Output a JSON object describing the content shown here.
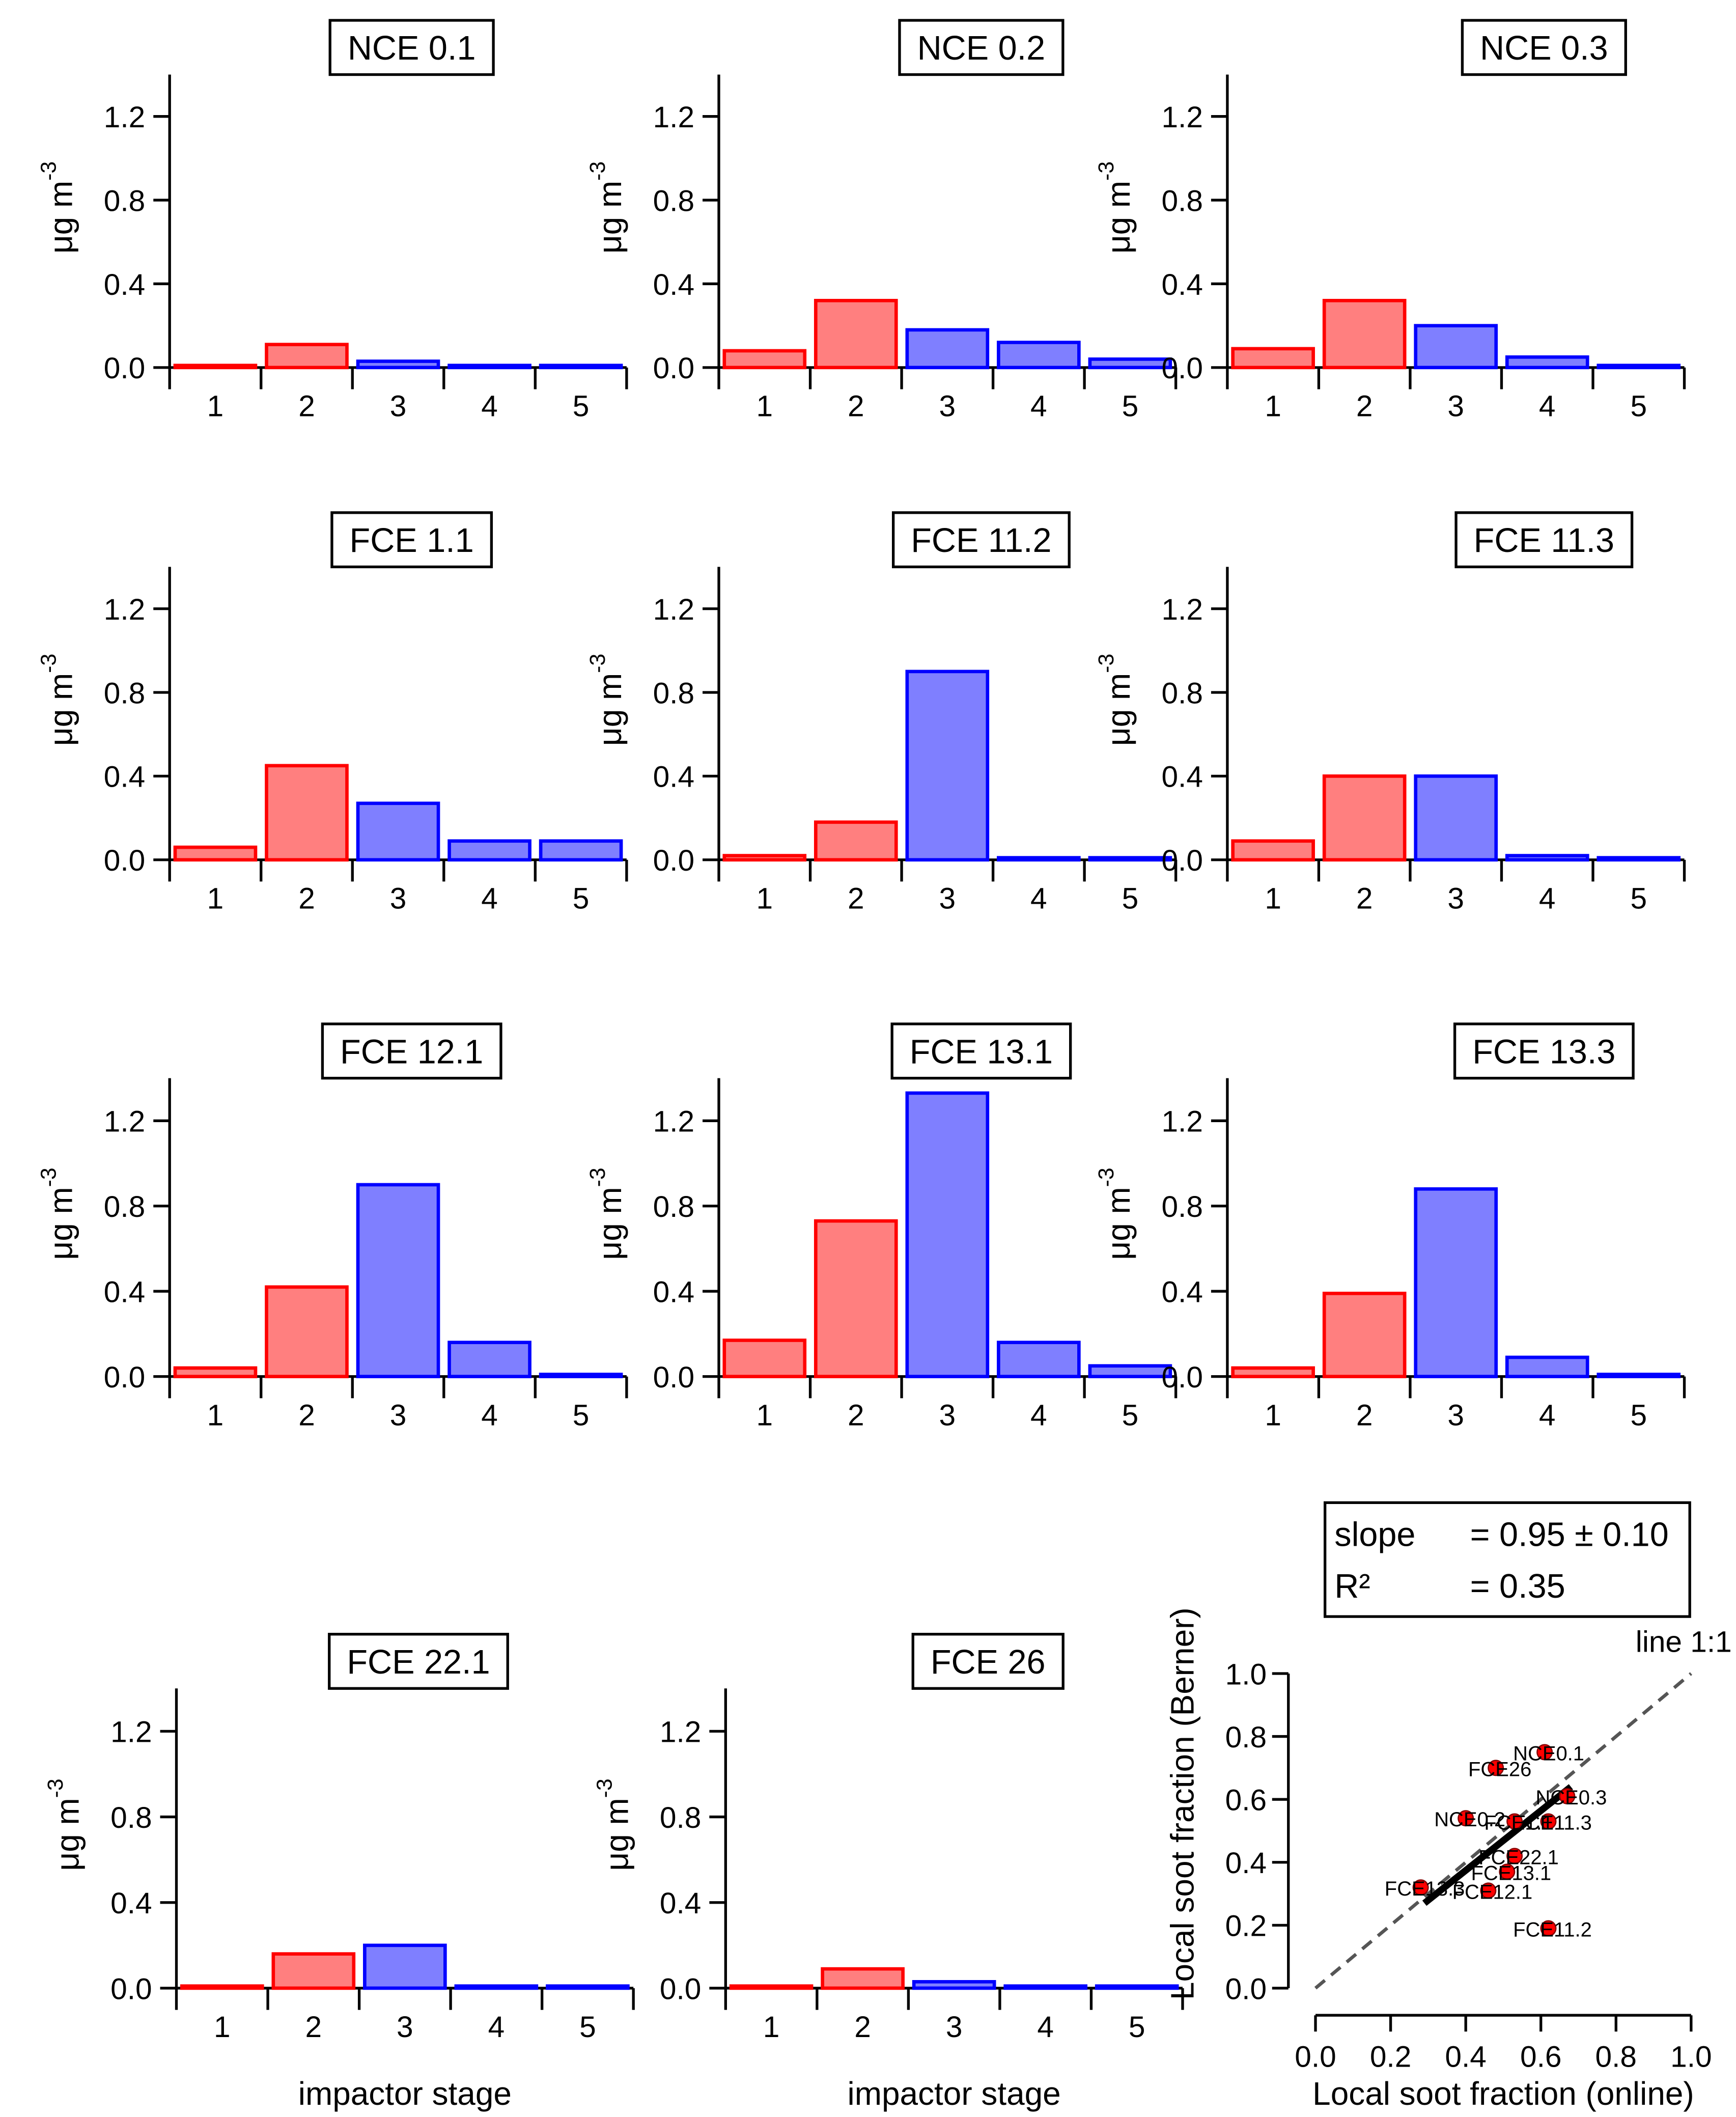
{
  "chart_data": [
    {
      "type": "bar",
      "title": "NCE 0.1",
      "categories": [
        "1",
        "2",
        "3",
        "4",
        "5"
      ],
      "values": [
        0.01,
        0.11,
        0.03,
        0.01,
        0.01
      ],
      "colors": [
        "#ff0000",
        "#ff0000",
        "#0000ff",
        "#0000ff",
        "#0000ff"
      ],
      "ylim": [
        0,
        1.4
      ],
      "yticks": [
        {
          "value": 0,
          "label": "0.0"
        },
        0.4,
        0.8,
        1.2
      ],
      "ylabel": "μg m",
      "ylabel_sup": "-3"
    },
    {
      "type": "bar",
      "title": "NCE 0.2",
      "categories": [
        "1",
        "2",
        "3",
        "4",
        "5"
      ],
      "values": [
        0.08,
        0.32,
        0.18,
        0.12,
        0.04
      ],
      "colors": [
        "#ff0000",
        "#ff0000",
        "#0000ff",
        "#0000ff",
        "#0000ff"
      ],
      "ylim": [
        0,
        1.4
      ],
      "yticks": [
        {
          "value": 0,
          "label": "0.0"
        },
        0.4,
        0.8,
        1.2
      ],
      "ylabel": "μg m",
      "ylabel_sup": "-3"
    },
    {
      "type": "bar",
      "title": "NCE 0.3",
      "categories": [
        "1",
        "2",
        "3",
        "4",
        "5"
      ],
      "values": [
        0.09,
        0.32,
        0.2,
        0.05,
        0.01
      ],
      "colors": [
        "#ff0000",
        "#ff0000",
        "#0000ff",
        "#0000ff",
        "#0000ff"
      ],
      "ylim": [
        0,
        1.4
      ],
      "yticks": [
        {
          "value": 0,
          "label": "0.0"
        },
        0.4,
        0.8,
        1.2
      ],
      "ylabel": "μg m",
      "ylabel_sup": "-3"
    },
    {
      "type": "bar",
      "title": "FCE 1.1",
      "categories": [
        "1",
        "2",
        "3",
        "4",
        "5"
      ],
      "values": [
        0.06,
        0.45,
        0.27,
        0.09,
        0.09
      ],
      "colors": [
        "#ff0000",
        "#ff0000",
        "#0000ff",
        "#0000ff",
        "#0000ff"
      ],
      "ylim": [
        0,
        1.4
      ],
      "yticks": [
        {
          "value": 0,
          "label": "0.0"
        },
        0.4,
        0.8,
        1.2
      ],
      "ylabel": "μg m",
      "ylabel_sup": "-3"
    },
    {
      "type": "bar",
      "title": "FCE 11.2",
      "categories": [
        "1",
        "2",
        "3",
        "4",
        "5"
      ],
      "values": [
        0.02,
        0.18,
        0.9,
        0.01,
        0.01
      ],
      "colors": [
        "#ff0000",
        "#ff0000",
        "#0000ff",
        "#0000ff",
        "#0000ff"
      ],
      "ylim": [
        0,
        1.4
      ],
      "yticks": [
        {
          "value": 0,
          "label": "0.0"
        },
        0.4,
        0.8,
        1.2
      ],
      "ylabel": "μg m",
      "ylabel_sup": "-3"
    },
    {
      "type": "bar",
      "title": "FCE 11.3",
      "categories": [
        "1",
        "2",
        "3",
        "4",
        "5"
      ],
      "values": [
        0.09,
        0.4,
        0.4,
        0.02,
        0.01
      ],
      "colors": [
        "#ff0000",
        "#ff0000",
        "#0000ff",
        "#0000ff",
        "#0000ff"
      ],
      "ylim": [
        0,
        1.4
      ],
      "yticks": [
        {
          "value": 0,
          "label": "0.0"
        },
        0.4,
        0.8,
        1.2
      ],
      "ylabel": "μg m",
      "ylabel_sup": "-3"
    },
    {
      "type": "bar",
      "title": "FCE 12.1",
      "categories": [
        "1",
        "2",
        "3",
        "4",
        "5"
      ],
      "values": [
        0.04,
        0.42,
        0.9,
        0.16,
        0.01
      ],
      "colors": [
        "#ff0000",
        "#ff0000",
        "#0000ff",
        "#0000ff",
        "#0000ff"
      ],
      "ylim": [
        0,
        1.4
      ],
      "yticks": [
        {
          "value": 0,
          "label": "0.0"
        },
        0.4,
        0.8,
        1.2
      ],
      "ylabel": "μg m",
      "ylabel_sup": "-3"
    },
    {
      "type": "bar",
      "title": "FCE 13.1",
      "categories": [
        "1",
        "2",
        "3",
        "4",
        "5"
      ],
      "values": [
        0.17,
        0.73,
        1.33,
        0.16,
        0.05
      ],
      "colors": [
        "#ff0000",
        "#ff0000",
        "#0000ff",
        "#0000ff",
        "#0000ff"
      ],
      "ylim": [
        0,
        1.4
      ],
      "yticks": [
        {
          "value": 0,
          "label": "0.0"
        },
        0.4,
        0.8,
        1.2
      ],
      "ylabel": "μg m",
      "ylabel_sup": "-3"
    },
    {
      "type": "bar",
      "title": "FCE 13.3",
      "categories": [
        "1",
        "2",
        "3",
        "4",
        "5"
      ],
      "values": [
        0.04,
        0.39,
        0.88,
        0.09,
        0.01
      ],
      "colors": [
        "#ff0000",
        "#ff0000",
        "#0000ff",
        "#0000ff",
        "#0000ff"
      ],
      "ylim": [
        0,
        1.4
      ],
      "yticks": [
        {
          "value": 0,
          "label": "0.0"
        },
        0.4,
        0.8,
        1.2
      ],
      "ylabel": "μg m",
      "ylabel_sup": "-3"
    },
    {
      "type": "bar",
      "title": "FCE 22.1",
      "categories": [
        "1",
        "2",
        "3",
        "4",
        "5"
      ],
      "values": [
        0.01,
        0.16,
        0.2,
        0.01,
        0.01
      ],
      "colors": [
        "#ff0000",
        "#ff0000",
        "#0000ff",
        "#0000ff",
        "#0000ff"
      ],
      "ylim": [
        0,
        1.4
      ],
      "yticks": [
        {
          "value": 0,
          "label": "0.0"
        },
        0.4,
        0.8,
        1.2
      ],
      "ylabel": "μg m",
      "ylabel_sup": "-3",
      "xlabel": "impactor stage"
    },
    {
      "type": "bar",
      "title": "FCE 26",
      "categories": [
        "1",
        "2",
        "3",
        "4",
        "5"
      ],
      "values": [
        0.01,
        0.09,
        0.03,
        0.01,
        0.01
      ],
      "colors": [
        "#ff0000",
        "#ff0000",
        "#0000ff",
        "#0000ff",
        "#0000ff"
      ],
      "ylim": [
        0,
        1.4
      ],
      "yticks": [
        {
          "value": 0,
          "label": "0.0"
        },
        0.4,
        0.8,
        1.2
      ],
      "ylabel": "μg m",
      "ylabel_sup": "-3",
      "xlabel": "impactor stage"
    },
    {
      "type": "scatter",
      "xlabel": "Local soot fraction (online)",
      "ylabel": "Local soot fraction (Berner)",
      "x": [
        0.61,
        0.48,
        0.67,
        0.62,
        0.4,
        0.53,
        0.53,
        0.51,
        0.46,
        0.28,
        0.62
      ],
      "y": [
        0.75,
        0.7,
        0.61,
        0.53,
        0.54,
        0.53,
        0.42,
        0.37,
        0.31,
        0.32,
        0.19
      ],
      "labels": [
        "NCE0.1",
        "FCE26",
        "NCE0.3",
        "FCE11.3",
        "NCE0.2",
        "FCE1.1",
        "FCE22.1",
        "FCE13.1",
        "FCE12.1",
        "FCE13.3",
        "FCE11.2"
      ],
      "color": "#ff0000",
      "xlim": [
        0,
        1
      ],
      "ylim": [
        0,
        1
      ],
      "xticks": [
        {
          "value": 0,
          "label": "0.0"
        },
        0.2,
        0.4,
        0.6,
        0.8,
        {
          "value": 1,
          "label": "1.0"
        }
      ],
      "yticks": [
        {
          "value": 0,
          "label": "0.0"
        },
        0.2,
        0.4,
        0.6,
        0.8,
        {
          "value": 1,
          "label": "1.0"
        }
      ],
      "fit": {
        "x": [
          0.29,
          0.68
        ],
        "y": [
          0.27,
          0.64
        ]
      },
      "reference_line_label": "line 1:1",
      "stats": [
        {
          "label": "slope",
          "value": "= 0.95 ± 0.10"
        },
        {
          "label": "R²",
          "value": "= 0.35"
        }
      ]
    }
  ]
}
